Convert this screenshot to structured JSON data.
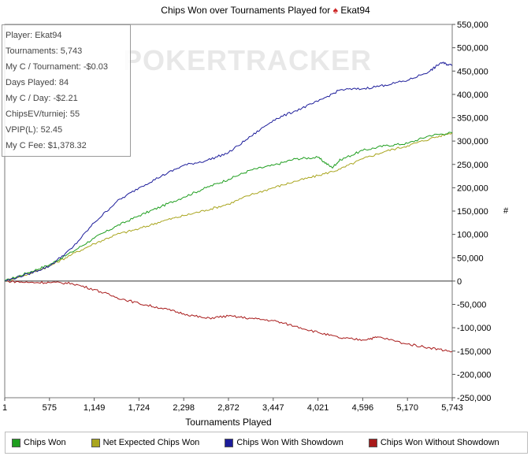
{
  "header": {
    "title_prefix": "Chips Won over Tournaments Played for",
    "player_name": "Ekat94",
    "spade_icon": "♠"
  },
  "stats": [
    "Player: Ekat94",
    "Tournaments: 5,743",
    "My C / Tournament: -$0.03",
    "Days Played: 84",
    "My C / Day: -$2.21",
    "ChipsEV/turniej: 55",
    "VPIP(L): 52.45",
    "My C Fee: $1,378.32"
  ],
  "watermark": "POKERTRACKER",
  "legend": [
    {
      "label": "Chips Won",
      "color": "#1f9e1f"
    },
    {
      "label": "Net Expected Chips Won",
      "color": "#a9a51e"
    },
    {
      "label": "Chips Won With Showdown",
      "color": "#1c1c9a"
    },
    {
      "label": "Chips Won Without Showdown",
      "color": "#a81a1a"
    }
  ],
  "chart_data": {
    "type": "line",
    "title": "Chips Won over Tournaments Played for Ekat94",
    "xlabel": "Tournaments Played",
    "ylabel": "#",
    "xlim": [
      1,
      5743
    ],
    "ylim": [
      -250000,
      550000
    ],
    "x_ticks": [
      "1",
      "575",
      "1,149",
      "1,724",
      "2,298",
      "2,872",
      "3,447",
      "4,021",
      "4,596",
      "5,170",
      "5,743"
    ],
    "y_ticks": [
      "550,000",
      "500,000",
      "450,000",
      "400,000",
      "350,000",
      "300,000",
      "250,000",
      "200,000",
      "150,000",
      "100,000",
      "50,000",
      "0",
      "-50,000",
      "-100,000",
      "-150,000",
      "-200,000",
      "-250,000"
    ],
    "y_tick_values": [
      550000,
      500000,
      450000,
      400000,
      350000,
      300000,
      250000,
      200000,
      150000,
      100000,
      50000,
      0,
      -50000,
      -100000,
      -150000,
      -200000,
      -250000
    ],
    "legend_position": "bottom",
    "grid": false,
    "series": [
      {
        "name": "Chips Won",
        "color": "#1f9e1f",
        "x": [
          1,
          300,
          575,
          862,
          1149,
          1436,
          1724,
          2011,
          2298,
          2585,
          2872,
          3159,
          3447,
          3734,
          4021,
          4200,
          4308,
          4596,
          4883,
          5170,
          5457,
          5743
        ],
        "y": [
          0,
          18000,
          35000,
          62000,
          92000,
          118000,
          140000,
          160000,
          180000,
          200000,
          218000,
          238000,
          248000,
          262000,
          265000,
          243000,
          260000,
          280000,
          290000,
          295000,
          312000,
          318000
        ]
      },
      {
        "name": "Net Expected Chips Won",
        "color": "#a9a51e",
        "x": [
          1,
          300,
          575,
          862,
          1149,
          1436,
          1724,
          2011,
          2298,
          2585,
          2872,
          3159,
          3447,
          3734,
          4021,
          4308,
          4596,
          4883,
          5170,
          5457,
          5743
        ],
        "y": [
          0,
          15000,
          32000,
          57000,
          80000,
          100000,
          112000,
          128000,
          140000,
          152000,
          165000,
          185000,
          200000,
          214000,
          226000,
          240000,
          262000,
          278000,
          290000,
          305000,
          318000
        ]
      },
      {
        "name": "Chips Won With Showdown",
        "color": "#1c1c9a",
        "x": [
          1,
          300,
          575,
          862,
          1149,
          1436,
          1724,
          2011,
          2298,
          2585,
          2872,
          3159,
          3447,
          3734,
          4021,
          4308,
          4596,
          4883,
          5170,
          5457,
          5600,
          5743
        ],
        "y": [
          0,
          15000,
          32000,
          70000,
          125000,
          170000,
          200000,
          225000,
          248000,
          258000,
          275000,
          310000,
          345000,
          365000,
          385000,
          410000,
          412000,
          420000,
          430000,
          450000,
          468000,
          462000
        ]
      },
      {
        "name": "Chips Won Without Showdown",
        "color": "#a81a1a",
        "x": [
          1,
          300,
          575,
          862,
          1149,
          1436,
          1724,
          2011,
          2298,
          2585,
          2872,
          3159,
          3447,
          3734,
          4021,
          4308,
          4596,
          4800,
          5170,
          5457,
          5743
        ],
        "y": [
          0,
          -3000,
          -3000,
          -5000,
          -18000,
          -35000,
          -48000,
          -58000,
          -70000,
          -80000,
          -75000,
          -80000,
          -85000,
          -97000,
          -110000,
          -122000,
          -126000,
          -120000,
          -135000,
          -143000,
          -151000
        ]
      }
    ]
  }
}
